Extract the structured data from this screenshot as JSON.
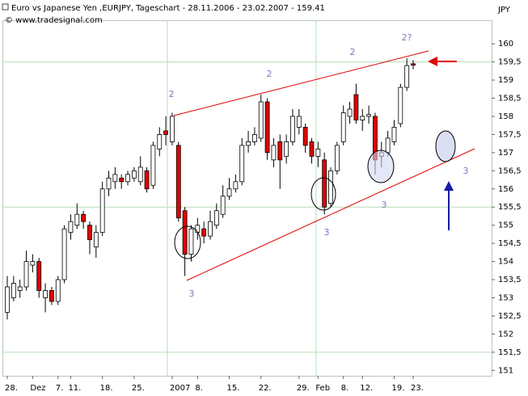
{
  "chart_data": {
    "type": "candlestick",
    "title": "Euro vs Japanese Yen ,EURJPY, Tageschart - 28.11.2006 - 23.02.2007 - 159.41",
    "subtitle": "© www.tradesignal.com",
    "y_label": "JPY",
    "categories": [
      "28.",
      null,
      null,
      null,
      "Dez",
      null,
      null,
      null,
      "7.",
      null,
      "11.",
      null,
      null,
      null,
      null,
      "18.",
      null,
      null,
      null,
      null,
      "25.",
      null,
      null,
      null,
      null,
      null,
      "2007",
      null,
      null,
      null,
      "8.",
      null,
      null,
      null,
      null,
      "15.",
      null,
      null,
      null,
      null,
      "22.",
      null,
      null,
      null,
      null,
      null,
      "29.",
      null,
      null,
      "Feb",
      null,
      null,
      null,
      "8.",
      null,
      null,
      "12.",
      null,
      null,
      null,
      null,
      "19.",
      null,
      null,
      "23."
    ],
    "open": [
      152.6,
      153.0,
      153.2,
      153.3,
      153.9,
      154.0,
      153.0,
      153.2,
      152.9,
      153.5,
      154.8,
      155.0,
      155.3,
      155.0,
      154.4,
      154.8,
      156.0,
      156.2,
      156.3,
      156.2,
      156.3,
      156.2,
      156.5,
      156.1,
      157.1,
      157.6,
      157.3,
      157.2,
      155.4,
      154.2,
      154.8,
      154.9,
      154.7,
      155.0,
      155.3,
      155.8,
      156.0,
      156.2,
      157.2,
      157.3,
      157.4,
      158.4,
      156.8,
      157.3,
      156.9,
      157.3,
      157.7,
      157.7,
      157.3,
      156.9,
      156.8,
      155.6,
      156.5,
      157.3,
      158.0,
      158.6,
      157.9,
      158.0,
      158.0,
      156.9,
      157.0,
      157.3,
      157.8,
      158.8,
      159.45
    ],
    "high": [
      153.6,
      153.6,
      153.5,
      154.3,
      154.2,
      154.1,
      153.4,
      153.3,
      153.6,
      155.0,
      155.3,
      155.6,
      155.4,
      155.1,
      155.0,
      156.2,
      156.5,
      156.6,
      156.4,
      156.5,
      156.6,
      156.9,
      156.6,
      157.3,
      157.7,
      158.0,
      158.1,
      157.3,
      155.5,
      155.0,
      155.2,
      155.1,
      155.4,
      155.6,
      156.1,
      156.3,
      156.4,
      157.4,
      157.6,
      157.7,
      158.6,
      158.5,
      157.4,
      157.5,
      157.5,
      158.2,
      158.2,
      157.8,
      157.4,
      157.3,
      157.0,
      156.6,
      157.3,
      158.3,
      158.4,
      158.9,
      158.2,
      158.3,
      158.1,
      157.3,
      157.6,
      157.9,
      158.9,
      159.6,
      159.55
    ],
    "low": [
      152.4,
      152.9,
      153.0,
      153.2,
      153.7,
      153.0,
      152.6,
      152.8,
      152.8,
      153.4,
      154.6,
      154.9,
      154.9,
      154.2,
      154.1,
      154.7,
      155.8,
      156.0,
      156.0,
      156.1,
      156.2,
      156.1,
      155.9,
      156.0,
      156.9,
      157.2,
      157.2,
      155.1,
      153.6,
      154.0,
      154.6,
      154.5,
      154.6,
      154.9,
      155.2,
      155.7,
      155.9,
      156.1,
      157.0,
      157.2,
      157.3,
      156.8,
      156.6,
      156.0,
      156.7,
      157.2,
      157.5,
      157.0,
      156.7,
      156.6,
      155.3,
      155.5,
      156.4,
      157.2,
      157.8,
      157.8,
      157.6,
      157.8,
      156.4,
      156.6,
      156.9,
      157.2,
      157.7,
      158.7,
      159.3
    ],
    "close": [
      153.3,
      153.4,
      153.3,
      154.0,
      154.0,
      153.2,
      153.2,
      152.9,
      153.5,
      154.9,
      155.1,
      155.3,
      155.1,
      154.6,
      154.8,
      156.0,
      156.3,
      156.4,
      156.2,
      156.4,
      156.5,
      156.6,
      156.0,
      157.2,
      157.5,
      157.5,
      158.0,
      155.2,
      154.2,
      154.9,
      155.0,
      154.7,
      155.1,
      155.4,
      155.8,
      156.0,
      156.2,
      157.2,
      157.3,
      157.5,
      158.4,
      157.0,
      157.2,
      156.8,
      157.3,
      158.0,
      158.0,
      157.2,
      156.9,
      157.1,
      155.5,
      156.5,
      157.2,
      158.1,
      158.2,
      157.9,
      158.0,
      158.05,
      156.8,
      157.0,
      157.4,
      157.7,
      158.8,
      159.4,
      159.41
    ],
    "up_color": "#ffffff",
    "down_color": "#e00000",
    "ylim": [
      150.85,
      160.65
    ],
    "yticks": [
      {
        "value": 151,
        "label": "151"
      },
      {
        "value": 151.5,
        "label": "151,5"
      },
      {
        "value": 152,
        "label": "152"
      },
      {
        "value": 152.5,
        "label": "152,5"
      },
      {
        "value": 153,
        "label": "153"
      },
      {
        "value": 153.5,
        "label": "153,5"
      },
      {
        "value": 154,
        "label": "154"
      },
      {
        "value": 154.5,
        "label": "154,5"
      },
      {
        "value": 155,
        "label": "155"
      },
      {
        "value": 155.5,
        "label": "155,5"
      },
      {
        "value": 156,
        "label": "156"
      },
      {
        "value": 156.5,
        "label": "156,5"
      },
      {
        "value": 157,
        "label": "157"
      },
      {
        "value": 157.5,
        "label": "157,5"
      },
      {
        "value": 158,
        "label": "158"
      },
      {
        "value": 158.5,
        "label": "158,5"
      },
      {
        "value": 159,
        "label": "159"
      },
      {
        "value": 159.5,
        "label": "159,5"
      },
      {
        "value": 160,
        "label": "160"
      }
    ],
    "hgrid": [
      151.5,
      155.5,
      159.5
    ],
    "annotations": [
      "2",
      "2",
      "2",
      "2?",
      "3",
      "3",
      "3",
      "3"
    ]
  }
}
